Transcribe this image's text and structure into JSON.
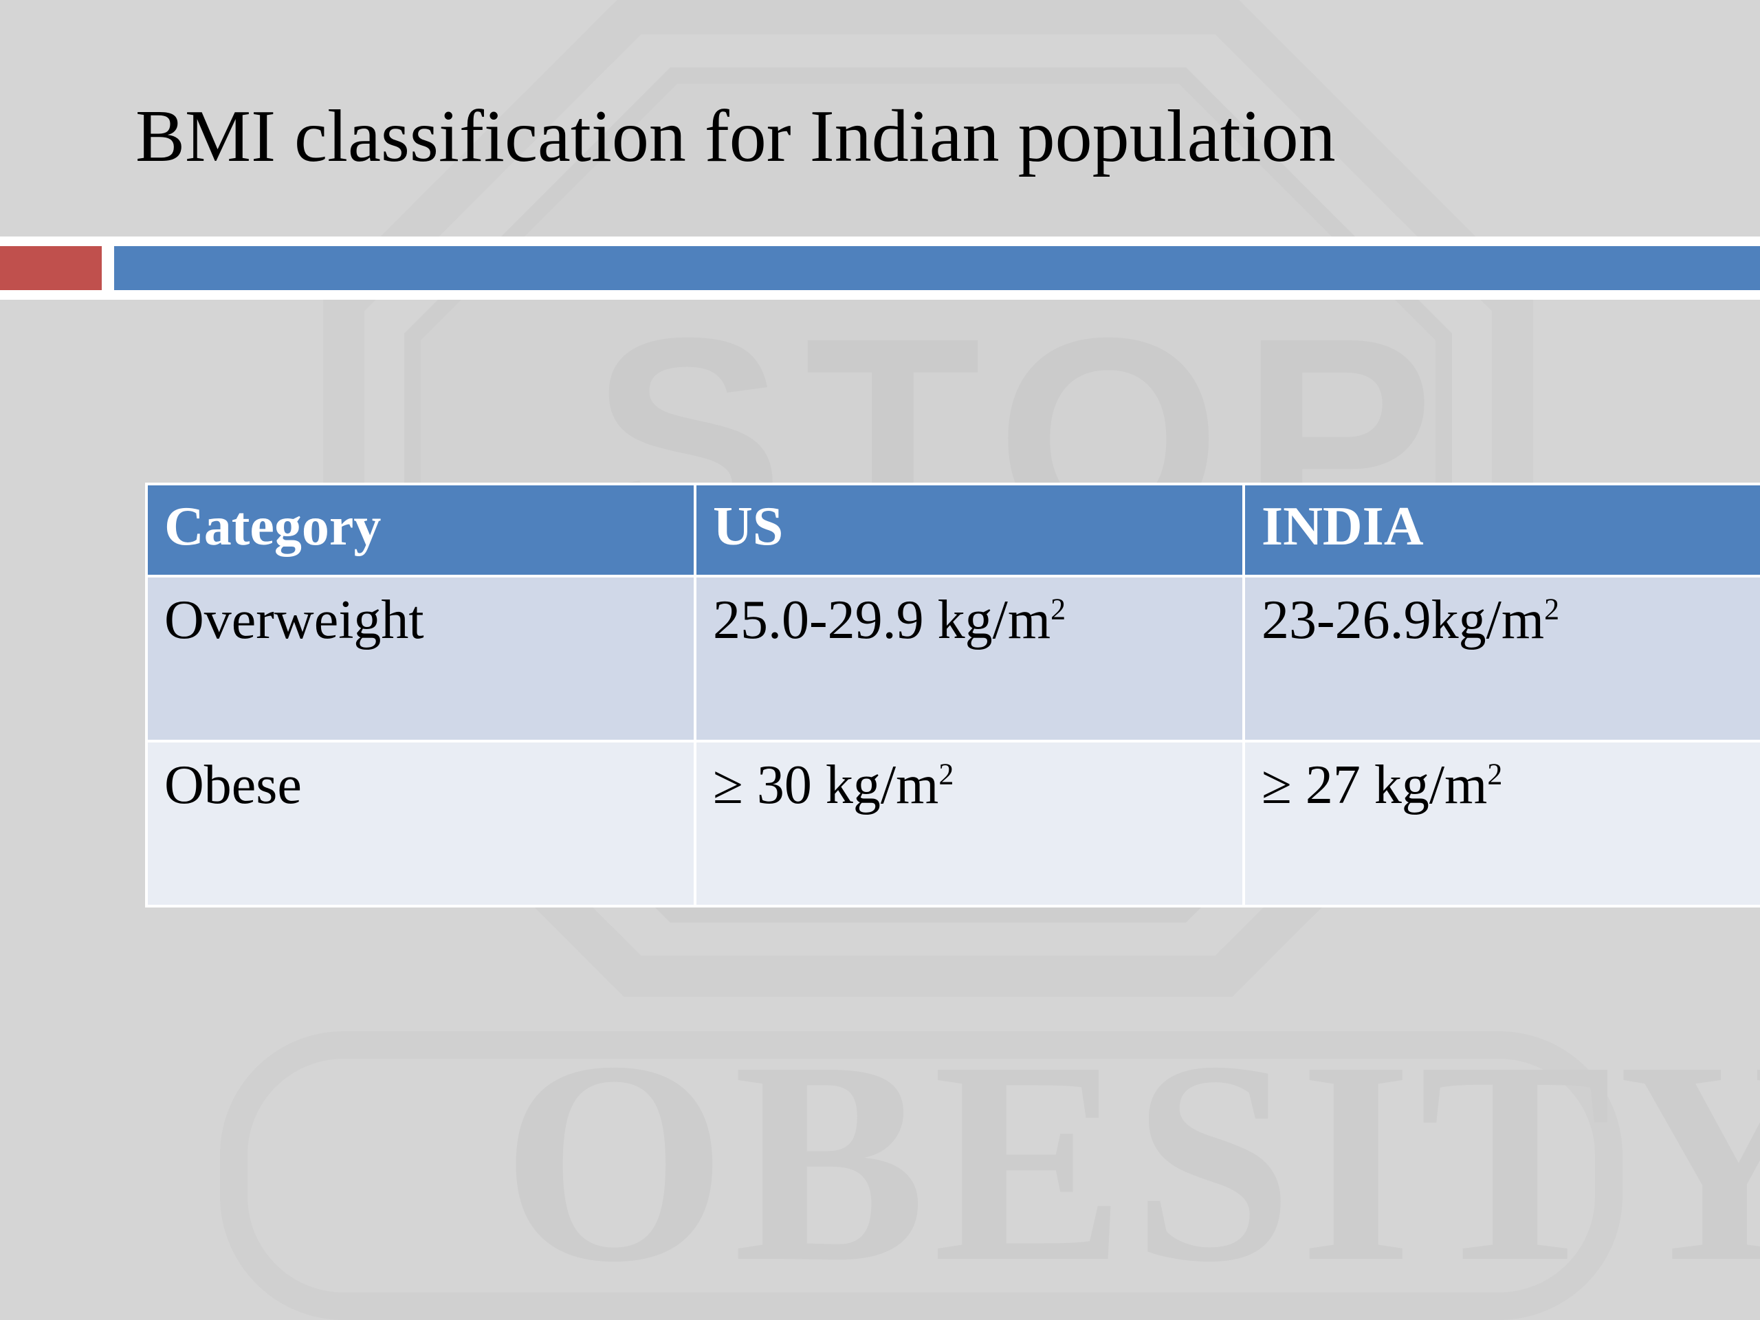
{
  "slide": {
    "title": "BMI classification for Indian population",
    "colors": {
      "background": "#d5d5d5",
      "accent_red": "#c0504d",
      "accent_blue": "#4f81bd",
      "header_fill": "#4f81bd",
      "row_odd_fill": "#d0d8e8",
      "row_even_fill": "#e9edf4"
    },
    "watermark": {
      "top_text": "STOP",
      "bottom_text": "OBESITY"
    }
  },
  "table": {
    "headers": [
      "Category",
      "US",
      "INDIA"
    ],
    "rows": [
      {
        "category": "Overweight",
        "us": {
          "value": "25.0-29.9 kg/m",
          "sup": "2"
        },
        "india": {
          "value": "23-26.9kg/m",
          "sup": "2"
        }
      },
      {
        "category": "Obese",
        "us": {
          "value": "≥ 30 kg/m",
          "sup": "2"
        },
        "india": {
          "value": "≥ 27 kg/m",
          "sup": "2"
        }
      }
    ]
  }
}
